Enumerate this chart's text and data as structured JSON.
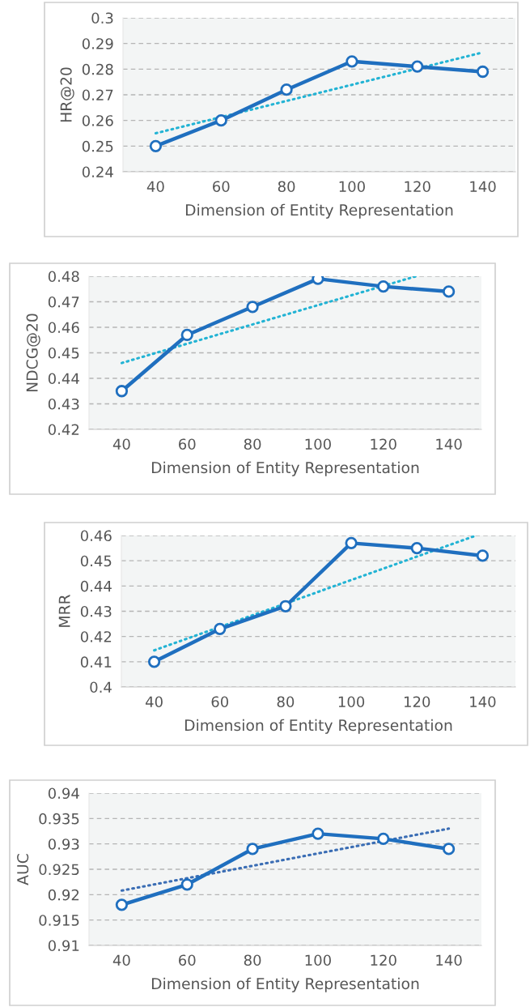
{
  "chart_data": [
    {
      "type": "line",
      "xlabel": "Dimension of Entity Representation",
      "ylabel": "HR@20",
      "x": [
        40,
        60,
        80,
        100,
        120,
        140
      ],
      "xlim": [
        30,
        150
      ],
      "xticks": [
        40,
        60,
        80,
        100,
        120,
        140
      ],
      "ylim": [
        0.24,
        0.3
      ],
      "yticks": [
        0.24,
        0.25,
        0.26,
        0.27,
        0.28,
        0.29,
        0.3
      ],
      "grid": "y",
      "series": [
        {
          "color": "#1f6fbf",
          "values": [
            0.25,
            0.26,
            0.272,
            0.283,
            0.281,
            0.279
          ],
          "marker": "circle",
          "line_style": "solid"
        },
        {
          "color": "#22b3d4",
          "x": [
            40,
            140
          ],
          "values": [
            0.255,
            0.2865
          ],
          "marker": "none",
          "line_style": "dotted"
        }
      ]
    },
    {
      "type": "line",
      "xlabel": "Dimension of Entity Representation",
      "ylabel": "NDCG@20",
      "x": [
        40,
        60,
        80,
        100,
        120,
        140
      ],
      "xlim": [
        30,
        150
      ],
      "xticks": [
        40,
        60,
        80,
        100,
        120,
        140
      ],
      "ylim": [
        0.42,
        0.48
      ],
      "yticks": [
        0.42,
        0.43,
        0.44,
        0.45,
        0.46,
        0.47,
        0.48
      ],
      "grid": "y",
      "series": [
        {
          "color": "#1f6fbf",
          "values": [
            0.435,
            0.457,
            0.468,
            0.479,
            0.476,
            0.474
          ],
          "marker": "circle",
          "line_style": "solid"
        },
        {
          "color": "#22b3d4",
          "x": [
            40,
            130
          ],
          "values": [
            0.446,
            0.48
          ],
          "marker": "none",
          "line_style": "dotted"
        }
      ]
    },
    {
      "type": "line",
      "xlabel": "Dimension of Entity Representation",
      "ylabel": "MRR",
      "x": [
        40,
        60,
        80,
        100,
        120,
        140
      ],
      "xlim": [
        30,
        150
      ],
      "xticks": [
        40,
        60,
        80,
        100,
        120,
        140
      ],
      "ylim": [
        0.4,
        0.46
      ],
      "yticks": [
        0.4,
        0.41,
        0.42,
        0.43,
        0.44,
        0.45,
        0.46
      ],
      "grid": "y",
      "series": [
        {
          "color": "#1f6fbf",
          "values": [
            0.41,
            0.423,
            0.432,
            0.457,
            0.455,
            0.452
          ],
          "marker": "circle",
          "line_style": "solid"
        },
        {
          "color": "#22b3d4",
          "x": [
            40,
            138
          ],
          "values": [
            0.4145,
            0.46
          ],
          "marker": "none",
          "line_style": "dotted"
        }
      ]
    },
    {
      "type": "line",
      "xlabel": "Dimension of Entity Representation",
      "ylabel": "AUC",
      "x": [
        40,
        60,
        80,
        100,
        120,
        140
      ],
      "xlim": [
        30,
        150
      ],
      "xticks": [
        40,
        60,
        80,
        100,
        120,
        140
      ],
      "ylim": [
        0.91,
        0.94
      ],
      "yticks": [
        0.91,
        0.915,
        0.92,
        0.925,
        0.93,
        0.935,
        0.94
      ],
      "grid": "y",
      "series": [
        {
          "color": "#1f6fbf",
          "values": [
            0.918,
            0.922,
            0.929,
            0.932,
            0.931,
            0.929
          ],
          "marker": "circle",
          "line_style": "solid"
        },
        {
          "color": "#3a6db4",
          "x": [
            40,
            140
          ],
          "values": [
            0.9208,
            0.933
          ],
          "marker": "none",
          "line_style": "dotted"
        }
      ]
    }
  ]
}
